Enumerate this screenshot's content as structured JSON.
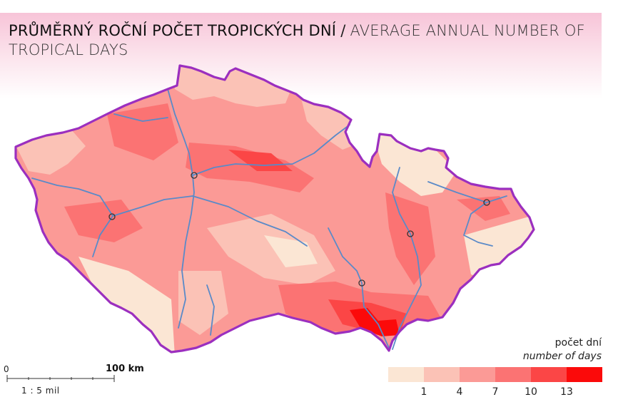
{
  "title": {
    "cz": "PRŮMĚRNÝ ROČNÍ POČET TROPICKÝCH DNÍ",
    "separator": "/",
    "en": "AVERAGE ANNUAL NUMBER OF TROPICAL DAYS"
  },
  "scale_bar": {
    "zero": "0",
    "length": "100 km",
    "ratio": "1 : 5 mil"
  },
  "legend": {
    "title_cz": "počet dní",
    "title_en": "number of days",
    "ticks": [
      "1",
      "4",
      "7",
      "10",
      "13"
    ],
    "colors": [
      "#fbe6d4",
      "#fbc2b6",
      "#fb9a96",
      "#fb7373",
      "#fb4646",
      "#fb0a0a"
    ]
  },
  "colors": {
    "border": "#9b2fbf",
    "river": "#5a8ac8",
    "city_marker": "#333333",
    "header_gradient": "#f7c4d8"
  }
}
